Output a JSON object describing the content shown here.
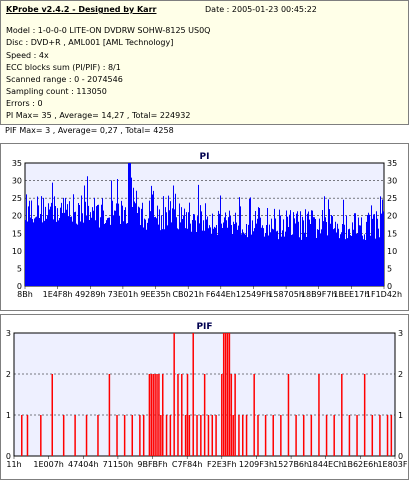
{
  "header": {
    "title": "KProbe v2.4.2 - Designed by Karr",
    "date": "Date : 2005-01-23 00:45:22",
    "lines": [
      "Model : 1-0-0-0 LITE-ON DVDRW SOHW-8125  US0Q",
      "Disc : DVD+R , AML001 [AML Technology]",
      "Speed : 4x",
      "ECC blocks sum (PI/PIF) : 8/1",
      "Scanned range : 0 - 2074546",
      "Sampling count : 113050",
      "Errors : 0",
      "PI Max= 35 , Average= 14,27 , Total= 224932",
      "PIF Max= 3 , Average= 0,27 , Total= 4258"
    ]
  },
  "chart_data": [
    {
      "type": "bar",
      "title": "PI",
      "ylim": [
        0,
        35
      ],
      "yticks": [
        0,
        5,
        10,
        15,
        20,
        25,
        30,
        35
      ],
      "xtick_labels": [
        "8Bh",
        "1E4F8h",
        "49289h",
        "73E01h",
        "9EE35h",
        "CB021h",
        "F644Eh",
        "12549Fh",
        "158705h",
        "18B9F7h",
        "1BEE17h",
        "1F1D42h"
      ],
      "grid": true,
      "color": "#0000ff",
      "max": 35,
      "average": 14.27,
      "profile": [
        [
          0,
          18,
          26
        ],
        [
          0.15,
          17,
          26
        ],
        [
          0.3,
          16,
          25
        ],
        [
          0.45,
          15,
          24
        ],
        [
          0.6,
          14,
          23
        ],
        [
          0.75,
          13,
          22
        ],
        [
          0.9,
          13,
          22
        ],
        [
          1.0,
          13,
          22
        ]
      ]
    },
    {
      "type": "bar",
      "title": "PIF",
      "ylim": [
        0,
        3
      ],
      "yticks": [
        0,
        1,
        2,
        3
      ],
      "xtick_labels": [
        "11h",
        "1E007h",
        "47404h",
        "71150h",
        "9BFBFh",
        "C7F84h",
        "F2E3Fh",
        "1209F3h",
        "1527B6h",
        "1844ECh",
        "1B62E6h",
        "1E803Fh"
      ],
      "grid": true,
      "color": "#ff0000",
      "max": 3,
      "average": 0.27,
      "series": [
        {
          "x": 0.02,
          "v": 1
        },
        {
          "x": 0.035,
          "v": 1
        },
        {
          "x": 0.07,
          "v": 1
        },
        {
          "x": 0.1,
          "v": 2
        },
        {
          "x": 0.13,
          "v": 1
        },
        {
          "x": 0.16,
          "v": 1
        },
        {
          "x": 0.19,
          "v": 1
        },
        {
          "x": 0.22,
          "v": 1
        },
        {
          "x": 0.25,
          "v": 2
        },
        {
          "x": 0.27,
          "v": 1
        },
        {
          "x": 0.29,
          "v": 1
        },
        {
          "x": 0.31,
          "v": 1
        },
        {
          "x": 0.33,
          "v": 1
        },
        {
          "x": 0.34,
          "v": 1
        },
        {
          "x": 0.355,
          "v": 2
        },
        {
          "x": 0.36,
          "v": 2
        },
        {
          "x": 0.365,
          "v": 2
        },
        {
          "x": 0.37,
          "v": 2
        },
        {
          "x": 0.375,
          "v": 2
        },
        {
          "x": 0.38,
          "v": 2
        },
        {
          "x": 0.385,
          "v": 1
        },
        {
          "x": 0.39,
          "v": 2
        },
        {
          "x": 0.4,
          "v": 1
        },
        {
          "x": 0.41,
          "v": 1
        },
        {
          "x": 0.42,
          "v": 3
        },
        {
          "x": 0.43,
          "v": 2
        },
        {
          "x": 0.44,
          "v": 2
        },
        {
          "x": 0.45,
          "v": 1
        },
        {
          "x": 0.455,
          "v": 2
        },
        {
          "x": 0.46,
          "v": 1
        },
        {
          "x": 0.47,
          "v": 3
        },
        {
          "x": 0.48,
          "v": 1
        },
        {
          "x": 0.49,
          "v": 1
        },
        {
          "x": 0.5,
          "v": 2
        },
        {
          "x": 0.51,
          "v": 1
        },
        {
          "x": 0.52,
          "v": 1
        },
        {
          "x": 0.53,
          "v": 1
        },
        {
          "x": 0.545,
          "v": 2
        },
        {
          "x": 0.55,
          "v": 3
        },
        {
          "x": 0.555,
          "v": 3
        },
        {
          "x": 0.56,
          "v": 3
        },
        {
          "x": 0.565,
          "v": 3
        },
        {
          "x": 0.57,
          "v": 2
        },
        {
          "x": 0.575,
          "v": 1
        },
        {
          "x": 0.58,
          "v": 2
        },
        {
          "x": 0.59,
          "v": 1
        },
        {
          "x": 0.6,
          "v": 1
        },
        {
          "x": 0.61,
          "v": 1
        },
        {
          "x": 0.63,
          "v": 2
        },
        {
          "x": 0.64,
          "v": 1
        },
        {
          "x": 0.66,
          "v": 1
        },
        {
          "x": 0.68,
          "v": 1
        },
        {
          "x": 0.7,
          "v": 1
        },
        {
          "x": 0.72,
          "v": 2
        },
        {
          "x": 0.74,
          "v": 1
        },
        {
          "x": 0.76,
          "v": 1
        },
        {
          "x": 0.78,
          "v": 1
        },
        {
          "x": 0.8,
          "v": 2
        },
        {
          "x": 0.82,
          "v": 1
        },
        {
          "x": 0.84,
          "v": 1
        },
        {
          "x": 0.86,
          "v": 2
        },
        {
          "x": 0.88,
          "v": 1
        },
        {
          "x": 0.9,
          "v": 1
        },
        {
          "x": 0.92,
          "v": 2
        },
        {
          "x": 0.94,
          "v": 1
        },
        {
          "x": 0.96,
          "v": 1
        },
        {
          "x": 0.98,
          "v": 1
        },
        {
          "x": 0.99,
          "v": 1
        }
      ]
    }
  ]
}
